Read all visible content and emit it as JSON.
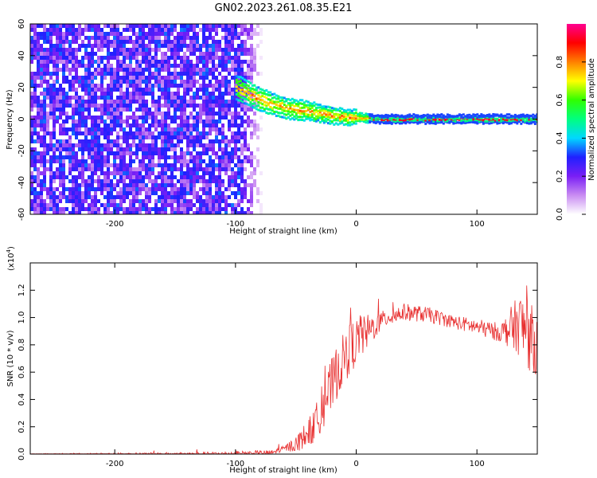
{
  "title": "GN02.2023.261.08.35.E21",
  "chart_data": [
    {
      "type": "heatmap",
      "xlabel": "Height of straight line (km)",
      "ylabel": "Frequency (Hz)",
      "xlim": [
        -270,
        150
      ],
      "ylim": [
        -60,
        60
      ],
      "x_ticks": [
        -200,
        -100,
        0,
        100
      ],
      "x_tick_labels": [
        "-200",
        "-100",
        "0",
        "100"
      ],
      "y_ticks": [
        -60,
        -40,
        -20,
        0,
        20,
        40,
        60
      ],
      "y_tick_labels": [
        "-60",
        "-40",
        "-20",
        "0",
        "20",
        "40",
        "60"
      ],
      "noise_region_x": [
        -270,
        -80
      ],
      "signal_track": [
        {
          "x": -100,
          "freq": 20
        },
        {
          "x": -80,
          "freq": 12
        },
        {
          "x": -60,
          "freq": 7
        },
        {
          "x": -40,
          "freq": 5
        },
        {
          "x": -20,
          "freq": 2
        },
        {
          "x": 0,
          "freq": 1
        },
        {
          "x": 20,
          "freq": 0
        },
        {
          "x": 150,
          "freq": 0
        }
      ],
      "colorbar": {
        "label": "Normalized spectral amplitude",
        "range": [
          0.0,
          1.0
        ],
        "ticks": [
          0.0,
          0.2,
          0.4,
          0.6,
          0.8
        ],
        "tick_labels": [
          "0.0",
          "0.2",
          "0.4",
          "0.6",
          "0.8"
        ],
        "colors": [
          "#ffffff",
          "#c98cf2",
          "#7a1ff5",
          "#2020ff",
          "#00d8ff",
          "#00ff80",
          "#30ff00",
          "#ffff00",
          "#ff8000",
          "#ff0000",
          "#ff0090"
        ]
      }
    },
    {
      "type": "line",
      "xlabel": "Height of straight line (km)",
      "ylabel": "SNR (10 * v/v)",
      "y_multiplier": "(x10",
      "y_multiplier_exp": "4",
      "y_multiplier_close": ")",
      "xlim": [
        -270,
        150
      ],
      "ylim": [
        0.0,
        1.4
      ],
      "x_ticks": [
        -200,
        -100,
        0,
        100
      ],
      "x_tick_labels": [
        "-200",
        "-100",
        "0",
        "100"
      ],
      "y_ticks": [
        0.0,
        0.2,
        0.4,
        0.6,
        0.8,
        1.0,
        1.2
      ],
      "y_tick_labels": [
        "0.0",
        "0.2",
        "0.4",
        "0.6",
        "0.8",
        "1.0",
        "1.2"
      ],
      "color": "#e83030",
      "envelope": [
        {
          "x": -270,
          "y": 0.0
        },
        {
          "x": -120,
          "y": 0.0
        },
        {
          "x": -70,
          "y": 0.01
        },
        {
          "x": -50,
          "y": 0.07
        },
        {
          "x": -35,
          "y": 0.2
        },
        {
          "x": -25,
          "y": 0.4
        },
        {
          "x": -15,
          "y": 0.62
        },
        {
          "x": -5,
          "y": 0.78
        },
        {
          "x": 10,
          "y": 0.9
        },
        {
          "x": 25,
          "y": 1.0
        },
        {
          "x": 40,
          "y": 1.04
        },
        {
          "x": 60,
          "y": 1.02
        },
        {
          "x": 80,
          "y": 0.97
        },
        {
          "x": 100,
          "y": 0.93
        },
        {
          "x": 120,
          "y": 0.89
        },
        {
          "x": 135,
          "y": 0.95
        },
        {
          "x": 150,
          "y": 0.8
        }
      ],
      "noise_amplitude": [
        {
          "x": -270,
          "a": 0.004
        },
        {
          "x": -60,
          "a": 0.02
        },
        {
          "x": -40,
          "a": 0.1
        },
        {
          "x": -20,
          "a": 0.2
        },
        {
          "x": 0,
          "a": 0.18
        },
        {
          "x": 20,
          "a": 0.07
        },
        {
          "x": 80,
          "a": 0.05
        },
        {
          "x": 120,
          "a": 0.07
        },
        {
          "x": 140,
          "a": 0.28
        },
        {
          "x": 150,
          "a": 0.22
        }
      ]
    }
  ]
}
